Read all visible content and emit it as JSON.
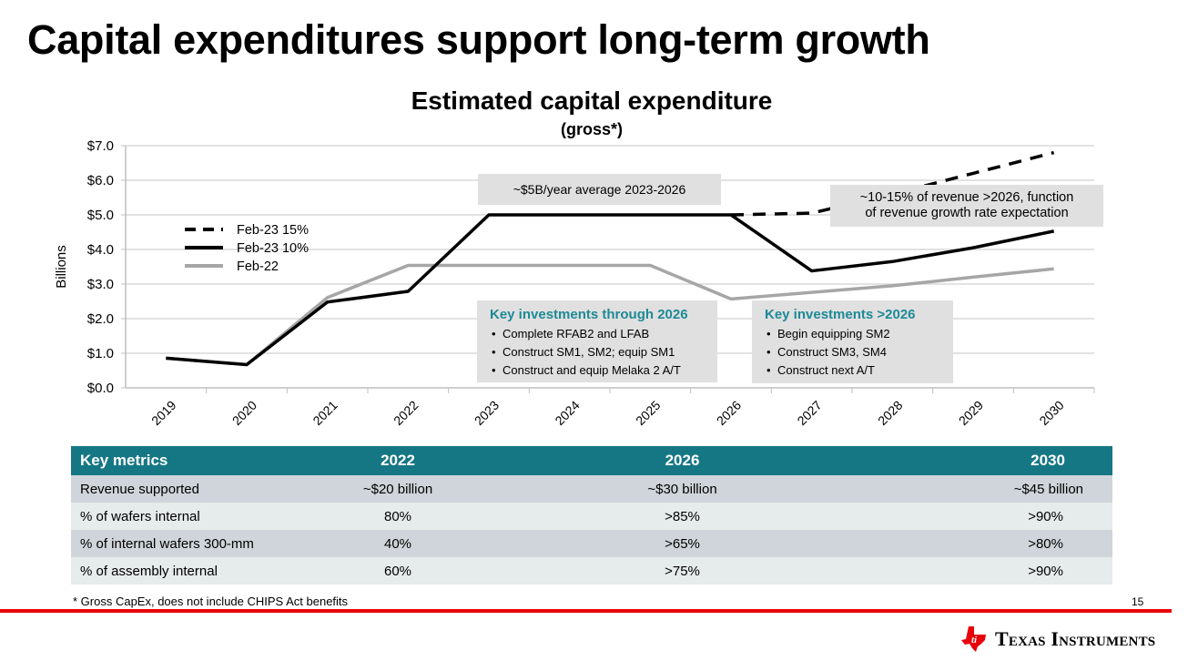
{
  "slide": {
    "title": "Capital expenditures support long-term growth",
    "footnote": "* Gross CapEx, does not include CHIPS Act benefits",
    "page_number": "15",
    "logo_text": "Texas Instruments",
    "accent_color": "#167784",
    "brand_red": "#e8000b"
  },
  "chart_data": {
    "type": "line",
    "title": "Estimated capital expenditure",
    "subtitle": "(gross*)",
    "ylabel": "Billions",
    "xlabel": "",
    "ylim": [
      0,
      7
    ],
    "yticks": [
      "$0.0",
      "$1.0",
      "$2.0",
      "$3.0",
      "$4.0",
      "$5.0",
      "$6.0",
      "$7.0"
    ],
    "grid": true,
    "legend_position": "left",
    "categories": [
      "2019",
      "2020",
      "2021",
      "2022",
      "2023",
      "2024",
      "2025",
      "2026",
      "2027",
      "2028",
      "2029",
      "2030"
    ],
    "series": [
      {
        "name": "Feb-23 15%",
        "style": "dashed",
        "color": "#000000",
        "values": [
          null,
          null,
          null,
          null,
          null,
          null,
          null,
          5.0,
          5.05,
          5.6,
          6.2,
          6.8
        ]
      },
      {
        "name": "Feb-23 10%",
        "style": "solid",
        "color": "#000000",
        "values": [
          0.86,
          0.67,
          2.48,
          2.79,
          5.0,
          5.0,
          5.0,
          5.0,
          3.38,
          3.65,
          4.05,
          4.53
        ]
      },
      {
        "name": "Feb-22",
        "style": "solid",
        "color": "#a6a6a6",
        "values": [
          0.86,
          0.67,
          2.61,
          3.54,
          3.54,
          3.54,
          3.54,
          2.57,
          2.76,
          2.95,
          3.2,
          3.44
        ]
      }
    ],
    "annotations": {
      "avg": "~$5B/year average 2023-2026",
      "future_line1": "~10-15% of revenue >2026, function",
      "future_line2": "of revenue growth rate expectation",
      "through2026": {
        "title": "Key investments through 2026",
        "items": [
          "Complete RFAB2 and LFAB",
          "Construct SM1, SM2; equip SM1",
          "Construct and equip Melaka 2 A/T"
        ]
      },
      "after2026": {
        "title": "Key investments >2026",
        "items": [
          "Begin equipping SM2",
          "Construct SM3, SM4",
          "Construct next A/T"
        ]
      }
    }
  },
  "table": {
    "headers": [
      "Key metrics",
      "2022",
      "2026",
      "2030"
    ],
    "rows": [
      [
        "Revenue supported",
        "~$20 billion",
        "~$30 billion",
        "~$45 billion"
      ],
      [
        "% of wafers internal",
        "80%",
        ">85%",
        ">90%"
      ],
      [
        "% of internal wafers 300-mm",
        "40%",
        ">65%",
        ">80%"
      ],
      [
        "% of assembly internal",
        "60%",
        ">75%",
        ">90%"
      ]
    ]
  }
}
